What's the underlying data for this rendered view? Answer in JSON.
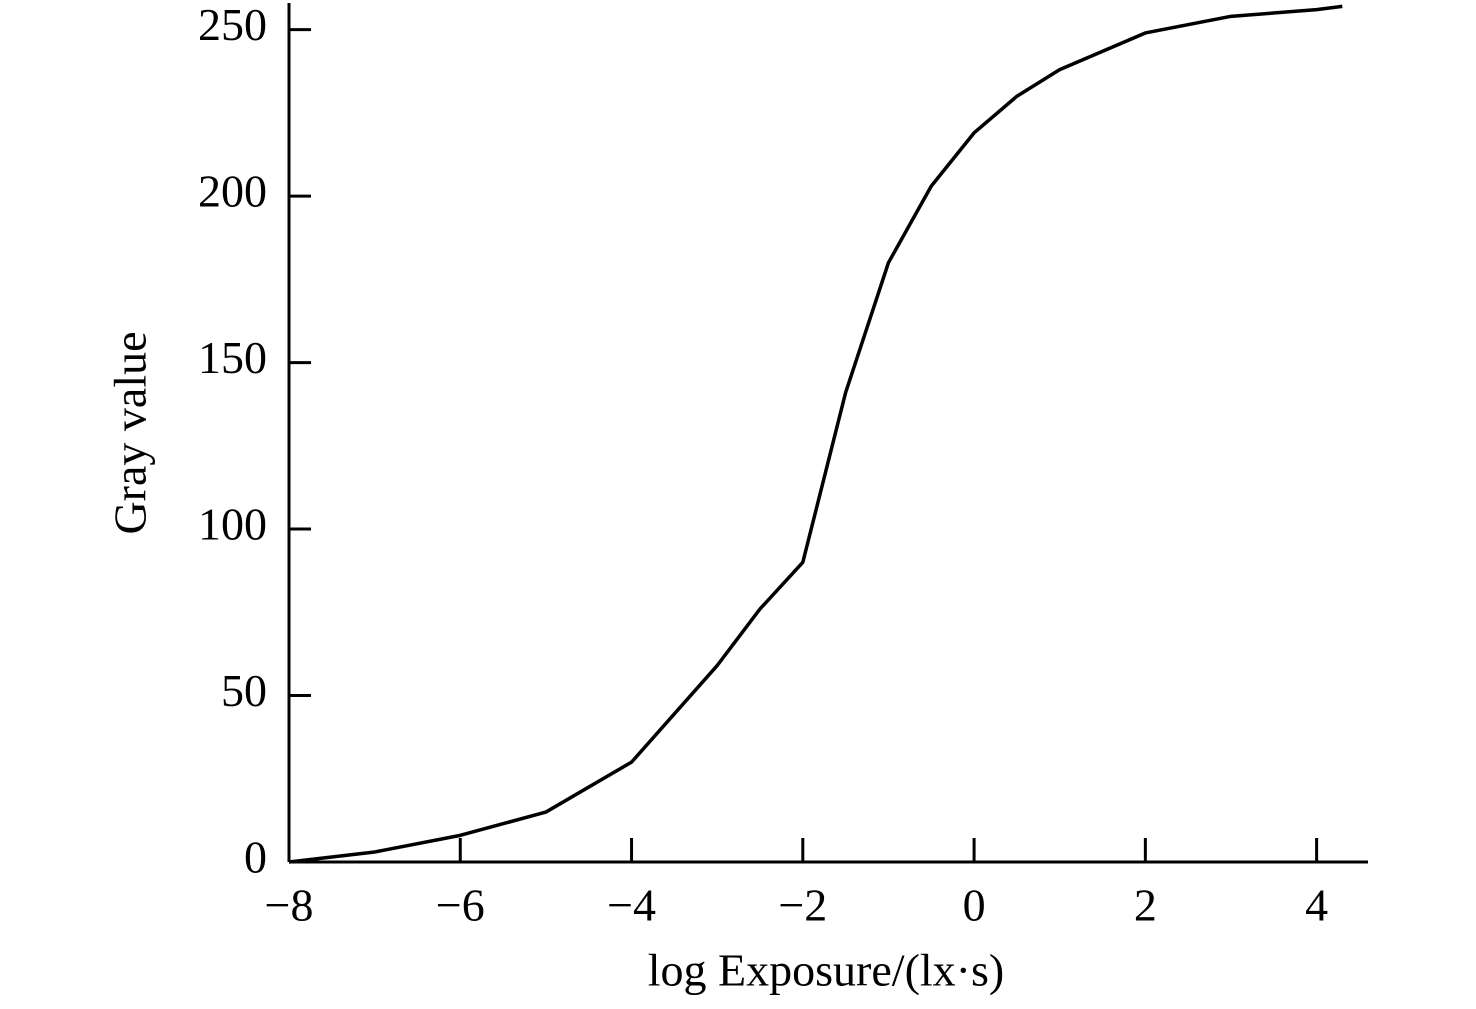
{
  "chart_data": {
    "type": "line",
    "xlabel": "log Exposure/(lx·s)",
    "ylabel": "Gray value",
    "x": [
      -8,
      -7,
      -6,
      -5,
      -4,
      -3,
      -2.5,
      -2,
      -1.5,
      -1,
      -0.5,
      0,
      0.5,
      1,
      2,
      3,
      4,
      4.3
    ],
    "series": [
      {
        "color": "#000000",
        "values": [
          0,
          3,
          8,
          15,
          30,
          59,
          76,
          90,
          141,
          180,
          203,
          219,
          230,
          238,
          249,
          254,
          256,
          257
        ]
      }
    ],
    "xlim": [
      -8,
      4.6
    ],
    "ylim": [
      0,
      258
    ],
    "xticks": [
      {
        "value": -8,
        "label": "−8"
      },
      {
        "value": -6,
        "label": "−6"
      },
      {
        "value": -4,
        "label": "−4"
      },
      {
        "value": -2,
        "label": "−2"
      },
      0,
      2,
      4
    ],
    "yticks": [
      0,
      50,
      100,
      150,
      200,
      250
    ]
  }
}
